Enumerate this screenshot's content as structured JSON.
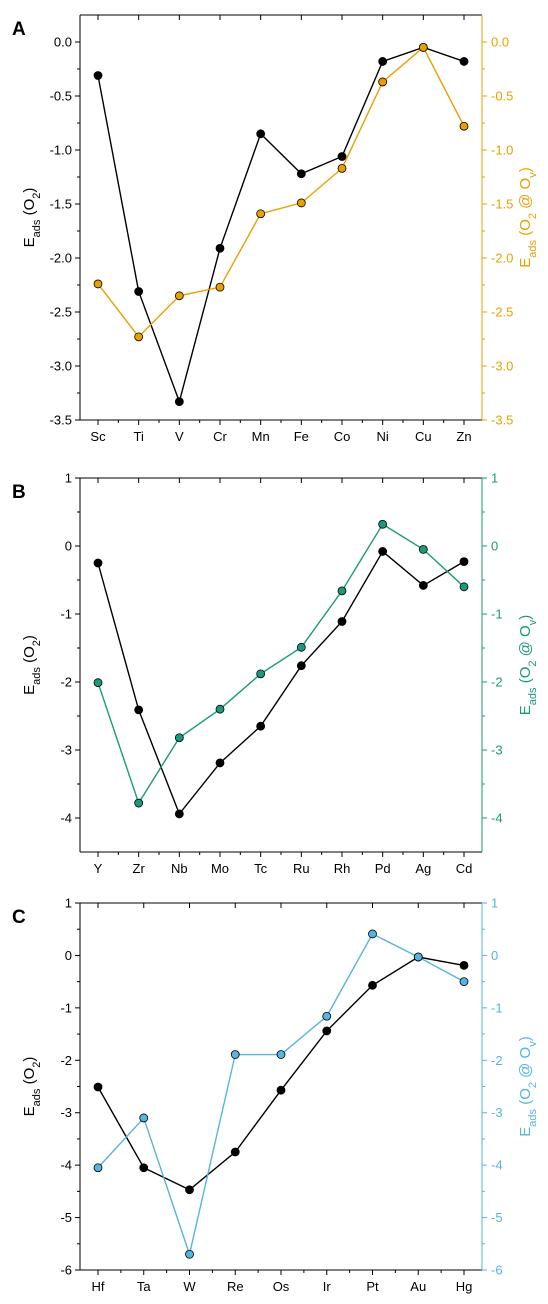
{
  "figure": {
    "y_axis_left_label": "E_ads (O_2)",
    "y_axis_right_label": "E_ads (O_2 @ O_v)"
  },
  "chart_data": [
    {
      "panel": "A",
      "type": "line",
      "categories": [
        "Sc",
        "Ti",
        "V",
        "Cr",
        "Mn",
        "Fe",
        "Co",
        "Ni",
        "Cu",
        "Zn"
      ],
      "series": [
        {
          "axis": "left",
          "color": "#000000",
          "values": [
            -0.31,
            -2.31,
            -3.33,
            -1.91,
            -0.85,
            -1.22,
            -1.06,
            -0.18,
            -0.05,
            -0.18
          ]
        },
        {
          "axis": "right",
          "color": "#e8a000",
          "values": [
            -2.24,
            -2.73,
            -2.35,
            -2.27,
            -1.59,
            -1.49,
            -1.17,
            -0.37,
            -0.05,
            -0.78
          ]
        }
      ],
      "ylim_left": [
        -3.5,
        0.25
      ],
      "ylim_right": [
        -3.5,
        0.25
      ],
      "yticks_left": [
        "0.0",
        "-0.5",
        "-1.0",
        "-1.5",
        "-2.0",
        "-2.5",
        "-3.0",
        "-3.5"
      ],
      "yticks_right": [
        "0.0",
        "-0.5",
        "-1.0",
        "-1.5",
        "-2.0",
        "-2.5",
        "-3.0",
        "-3.5"
      ],
      "ytick_values": [
        0,
        -0.5,
        -1,
        -1.5,
        -2,
        -2.5,
        -3,
        -3.5
      ],
      "right_axis_color": "#e8a000",
      "grid": false
    },
    {
      "panel": "B",
      "type": "line",
      "categories": [
        "Y",
        "Zr",
        "Nb",
        "Mo",
        "Tc",
        "Ru",
        "Rh",
        "Pd",
        "Ag",
        "Cd"
      ],
      "series": [
        {
          "axis": "left",
          "color": "#000000",
          "values": [
            -0.25,
            -2.41,
            -3.94,
            -3.19,
            -2.65,
            -1.76,
            -1.11,
            -0.08,
            -0.58,
            -0.23
          ]
        },
        {
          "axis": "right",
          "color": "#1a9a7a",
          "values": [
            -2.01,
            -3.78,
            -2.82,
            -2.4,
            -1.88,
            -1.49,
            -0.66,
            0.32,
            -0.05,
            -0.6
          ]
        }
      ],
      "ylim_left": [
        -4.5,
        1
      ],
      "ylim_right": [
        -4.5,
        1
      ],
      "yticks_left": [
        "1",
        "0",
        "-1",
        "-2",
        "-3",
        "-4"
      ],
      "yticks_right": [
        "0",
        "-1",
        "-2",
        "-3",
        "-4"
      ],
      "ytick_values_left": [
        1,
        0,
        -1,
        -2,
        -3,
        -4
      ],
      "ytick_values_right": [
        0,
        -1,
        -2,
        -3,
        -4
      ],
      "right_axis_color": "#1a9a7a",
      "grid": false
    },
    {
      "panel": "C",
      "type": "line",
      "categories": [
        "Hf",
        "Ta",
        "W",
        "Re",
        "Os",
        "Ir",
        "Pt",
        "Au",
        "Hg"
      ],
      "series": [
        {
          "axis": "left",
          "color": "#000000",
          "values": [
            -2.51,
            -4.05,
            -4.47,
            -3.75,
            -2.57,
            -1.44,
            -0.57,
            -0.03,
            -0.19
          ]
        },
        {
          "axis": "right",
          "color": "#56b4e0",
          "values": [
            -4.05,
            -3.1,
            -5.7,
            -1.89,
            -1.89,
            -1.16,
            0.41,
            -0.03,
            -0.5
          ]
        }
      ],
      "ylim_left": [
        -6,
        1
      ],
      "ylim_right": [
        -6,
        1
      ],
      "yticks_left": [
        "1",
        "0",
        "-1",
        "-2",
        "-3",
        "-4",
        "-5",
        "-6"
      ],
      "yticks_right": [
        "1",
        "0",
        "-1",
        "-2",
        "-3",
        "-4",
        "-5",
        "-6"
      ],
      "ytick_values": [
        1,
        0,
        -1,
        -2,
        -3,
        -4,
        -5,
        -6
      ],
      "right_axis_color": "#56b4e0",
      "grid": false
    }
  ]
}
